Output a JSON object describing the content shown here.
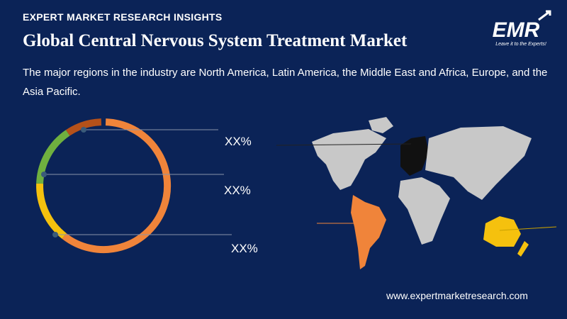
{
  "header": {
    "kicker": "EXPERT MARKET RESEARCH INSIGHTS",
    "title": "Global Central Nervous System Treatment Market",
    "subtitle": "The major regions in the industry are North America, Latin America, the Middle East and Africa, Europe, and the Asia Pacific."
  },
  "logo": {
    "text": "EMR",
    "tagline": "Leave it to the Experts!"
  },
  "donut_labels": [
    "XX%",
    "XX%",
    "XX%"
  ],
  "footer": {
    "website": "www.expertmarketresearch.com"
  }
}
